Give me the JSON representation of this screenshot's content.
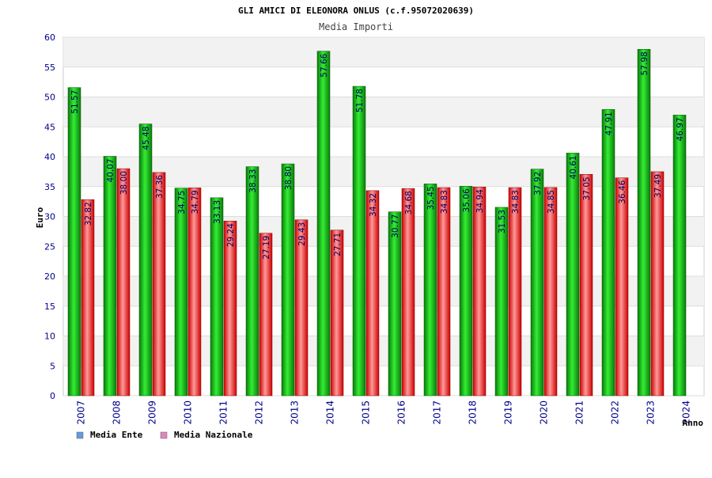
{
  "chart_data": {
    "type": "bar",
    "title": "GLI AMICI DI ELEONORA ONLUS (c.f.95072020639)",
    "subtitle": "Media Importi",
    "ylabel": "Euro",
    "xlabel": "Anno",
    "ylim": [
      0,
      60
    ],
    "yticks": [
      0,
      5,
      10,
      15,
      20,
      25,
      30,
      35,
      40,
      45,
      50,
      55,
      60
    ],
    "grid": true,
    "legend_position": "bottom-left",
    "categories": [
      "2007",
      "2008",
      "2009",
      "2010",
      "2011",
      "2012",
      "2013",
      "2014",
      "2015",
      "2016",
      "2017",
      "2018",
      "2019",
      "2020",
      "2021",
      "2022",
      "2023",
      "2024"
    ],
    "series": [
      {
        "name": "Media Ente",
        "color": "#22aa22",
        "legend_color": "#6699dd",
        "values": [
          51.57,
          40.07,
          45.48,
          34.75,
          33.13,
          38.33,
          38.8,
          57.66,
          51.78,
          30.77,
          35.45,
          35.06,
          31.53,
          37.92,
          40.61,
          47.91,
          57.98,
          46.97
        ]
      },
      {
        "name": "Media Nazionale",
        "color": "#dd2222",
        "legend_color": "#dd88bb",
        "values": [
          32.82,
          38.0,
          37.36,
          34.79,
          29.24,
          27.19,
          29.43,
          27.71,
          34.32,
          34.68,
          34.83,
          34.94,
          34.83,
          34.85,
          37.05,
          36.46,
          37.49,
          null
        ]
      }
    ]
  }
}
